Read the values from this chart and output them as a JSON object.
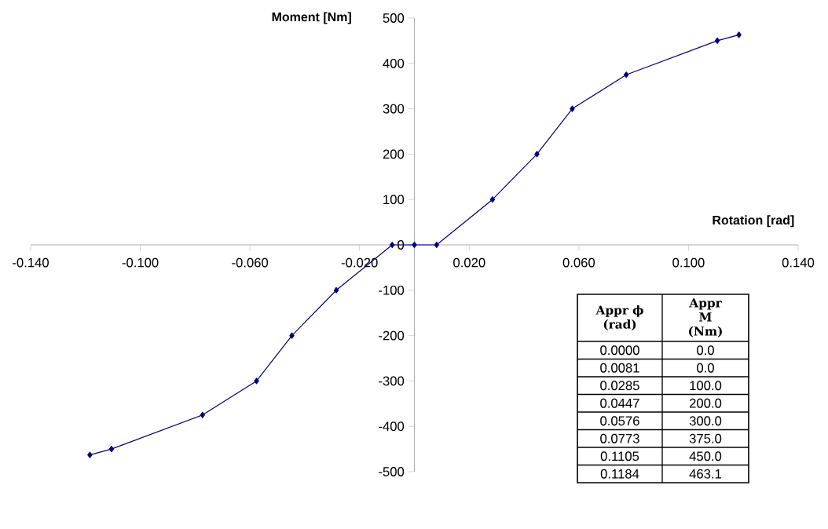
{
  "chart_data": {
    "type": "line",
    "xlabel": "Rotation [rad]",
    "ylabel": "Moment [Nm]",
    "x": [
      -0.1184,
      -0.1105,
      -0.0773,
      -0.0576,
      -0.0447,
      -0.0285,
      -0.0081,
      0.0,
      0.0081,
      0.0285,
      0.0447,
      0.0576,
      0.0773,
      0.1105,
      0.1184
    ],
    "series": [
      {
        "color": "#000080",
        "values": [
          -463.1,
          -450,
          -375,
          -300,
          -200,
          -100,
          0,
          0,
          0,
          100,
          200,
          300,
          375,
          450,
          463.1
        ]
      }
    ],
    "xlim": [
      -0.14,
      0.14
    ],
    "xticks": [
      {
        "value": -0.14,
        "label": "-0.140"
      },
      {
        "value": -0.1,
        "label": "-0.100"
      },
      {
        "value": -0.06,
        "label": "-0.060"
      },
      {
        "value": -0.02,
        "label": "-0.020"
      },
      {
        "value": 0.02,
        "label": "0.020"
      },
      {
        "value": 0.06,
        "label": "0.060"
      },
      {
        "value": 0.1,
        "label": "0.100"
      },
      {
        "value": 0.14,
        "label": "0.140"
      }
    ],
    "ylim": [
      -500,
      500
    ],
    "yticks": [
      -500,
      -400,
      -300,
      -200,
      -100,
      0,
      100,
      200,
      300,
      400,
      500
    ],
    "marker": "diamond",
    "line_style": "solid",
    "grid": false,
    "annotations": [
      "Appr ϕ (rad)",
      "Appr M (Nm)",
      "0.0000",
      "0.0",
      "0.0081",
      "0.0",
      "0.0285",
      "100.0",
      "0.0447",
      "200.0",
      "0.0576",
      "300.0",
      "0.0773",
      "375.0",
      "0.1105",
      "450.0",
      "0.1184",
      "463.1"
    ]
  }
}
